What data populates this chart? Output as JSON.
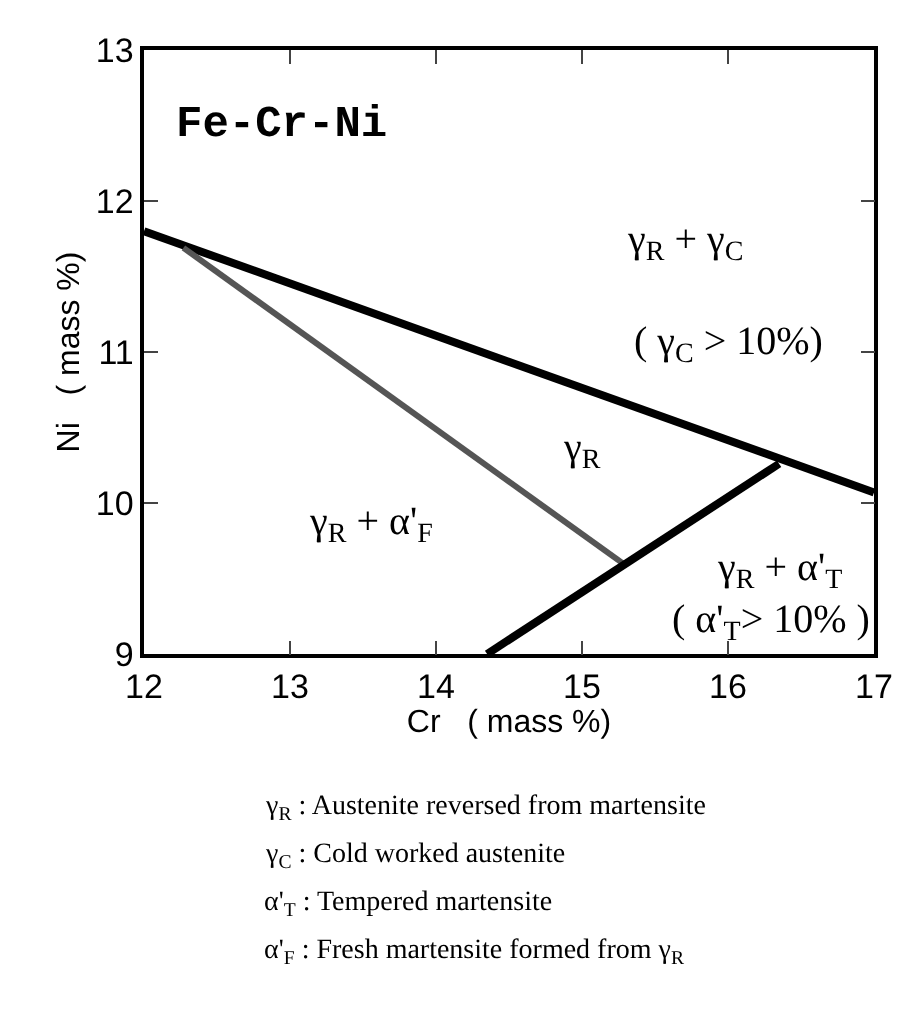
{
  "chart_data": {
    "type": "line",
    "xlabel": "Cr   ( mass %)",
    "ylabel": "Ni   ( mass %)",
    "xlim": [
      12,
      17
    ],
    "ylim": [
      9,
      13
    ],
    "xticks": [
      12,
      13,
      14,
      15,
      16,
      17
    ],
    "yticks": [
      9,
      10,
      11,
      12,
      13
    ],
    "marker": "none",
    "series": [
      {
        "color": "#000000",
        "x": [
          12,
          17
        ],
        "values": [
          11.8,
          10.07
        ]
      },
      {
        "color": "#555555",
        "x": [
          12.27,
          15.28
        ],
        "values": [
          11.69,
          9.6
        ]
      },
      {
        "color": "#000000",
        "x": [
          14.35,
          16.35
        ],
        "values": [
          9.0,
          10.26
        ]
      }
    ],
    "annotations": [
      "Fe-Cr-Ni",
      "γ$_{R}$ + γ$_{C}$",
      "( γ$_{C}$ > 10%)",
      "γ$_{R}$",
      "γ$_{R}$ + α'$_{F}$",
      "γ$_{R}$ + α'$_{T}$",
      "( α'$_{T}$> 10% )",
      "γ$_{R}$ : Austenite reversed from martensite",
      "γ$_{C}$ : Cold worked austenite",
      "α'$_{T}$ : Tempered martensite",
      "α'$_{F}$ : Fresh martensite formed from γ$_{R}$"
    ]
  }
}
